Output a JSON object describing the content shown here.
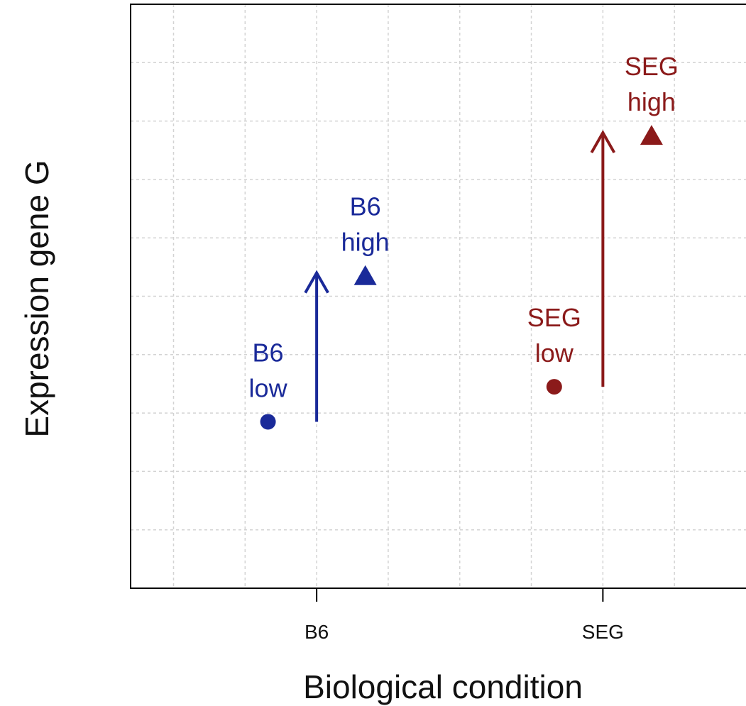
{
  "chart_data": {
    "type": "scatter",
    "xlabel": "Biological condition",
    "ylabel": "Expression gene G",
    "categories": [
      "B6",
      "SEG"
    ],
    "xlim": [
      0.35,
      2.5
    ],
    "ylim": [
      0,
      10
    ],
    "grid": true,
    "colors": {
      "B6": "#1a2a99",
      "SEG": "#8b1a1a"
    },
    "series": [
      {
        "name": "B6",
        "points": [
          {
            "label": [
              "B6",
              "low"
            ],
            "x": 0.83,
            "y": 2.85,
            "marker": "circle"
          },
          {
            "label": [
              "B6",
              "high"
            ],
            "x": 1.17,
            "y": 5.35,
            "marker": "triangle"
          }
        ],
        "arrow": {
          "x": 1.0,
          "from": 2.85,
          "to": 5.4
        }
      },
      {
        "name": "SEG",
        "points": [
          {
            "label": [
              "SEG",
              "low"
            ],
            "x": 1.83,
            "y": 3.45,
            "marker": "circle"
          },
          {
            "label": [
              "SEG",
              "high"
            ],
            "x": 2.17,
            "y": 7.75,
            "marker": "triangle"
          }
        ],
        "arrow": {
          "x": 2.0,
          "from": 3.45,
          "to": 7.8
        }
      }
    ]
  }
}
